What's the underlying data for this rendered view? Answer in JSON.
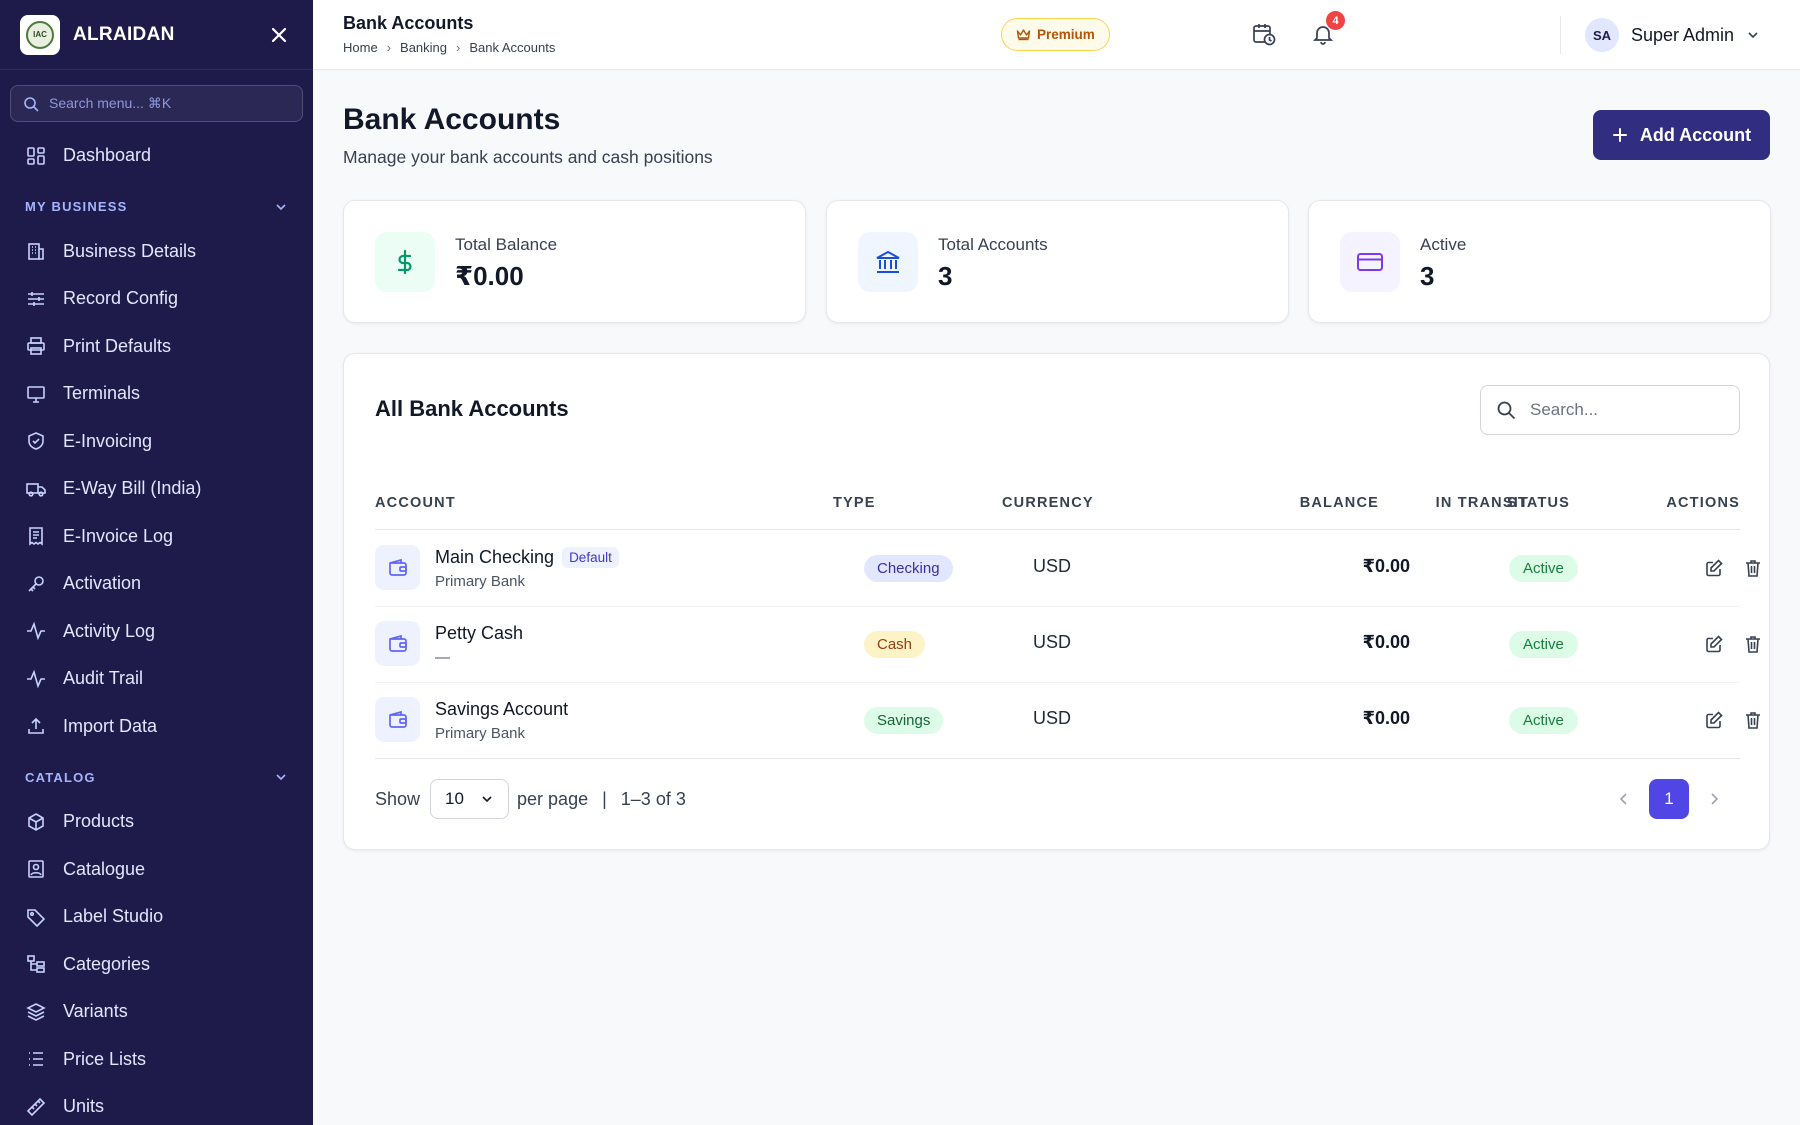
{
  "sidebar": {
    "brand": "ALRAIDAN",
    "logo_text": "IAC",
    "search_placeholder": "Search menu... ⌘K",
    "top_items": [
      {
        "label": "Dashboard",
        "icon": "dashboard-icon"
      }
    ],
    "sections": [
      {
        "title": "MY BUSINESS",
        "items": [
          {
            "label": "Business Details",
            "icon": "building-icon"
          },
          {
            "label": "Record Config",
            "icon": "sliders-icon"
          },
          {
            "label": "Print Defaults",
            "icon": "printer-icon"
          },
          {
            "label": "Terminals",
            "icon": "monitor-icon"
          },
          {
            "label": "E-Invoicing",
            "icon": "shield-icon"
          },
          {
            "label": "E-Way Bill (India)",
            "icon": "truck-icon"
          },
          {
            "label": "E-Invoice Log",
            "icon": "receipt-icon"
          },
          {
            "label": "Activation",
            "icon": "key-icon"
          },
          {
            "label": "Activity Log",
            "icon": "activity-icon"
          },
          {
            "label": "Audit Trail",
            "icon": "activity-icon"
          },
          {
            "label": "Import Data",
            "icon": "upload-icon"
          }
        ]
      },
      {
        "title": "CATALOG",
        "items": [
          {
            "label": "Products",
            "icon": "package-icon"
          },
          {
            "label": "Catalogue",
            "icon": "image-icon"
          },
          {
            "label": "Label Studio",
            "icon": "tag-icon"
          },
          {
            "label": "Categories",
            "icon": "tree-icon"
          },
          {
            "label": "Variants",
            "icon": "layers-icon"
          },
          {
            "label": "Price Lists",
            "icon": "list-icon"
          },
          {
            "label": "Units",
            "icon": "ruler-icon"
          }
        ]
      }
    ]
  },
  "header": {
    "title": "Bank Accounts",
    "breadcrumb": [
      "Home",
      "Banking",
      "Bank Accounts"
    ],
    "premium_label": "Premium",
    "notification_count": "4",
    "user_initials": "SA",
    "user_name": "Super Admin"
  },
  "page": {
    "title": "Bank Accounts",
    "subtitle": "Manage your bank accounts and cash positions",
    "add_button": "Add Account"
  },
  "stats": [
    {
      "label": "Total Balance",
      "value": "₹0.00",
      "icon": "dollar-icon",
      "bg": "#ecfdf5",
      "color": "#059669"
    },
    {
      "label": "Total Accounts",
      "value": "3",
      "icon": "bank-icon",
      "bg": "#eff6ff",
      "color": "#1d4ed8"
    },
    {
      "label": "Active",
      "value": "3",
      "icon": "credit-card-icon",
      "bg": "#f5f3ff",
      "color": "#7c3aed"
    }
  ],
  "table": {
    "title": "All Bank Accounts",
    "search_placeholder": "Search...",
    "columns": [
      "ACCOUNT",
      "TYPE",
      "CURRENCY",
      "BALANCE",
      "IN TRANSIT",
      "STATUS",
      "ACTIONS"
    ],
    "default_label": "Default",
    "rows": [
      {
        "name": "Main Checking",
        "sub": "Primary Bank",
        "is_default": true,
        "type": "Checking",
        "type_bg": "#e0e7ff",
        "type_color": "#3730a3",
        "currency": "USD",
        "balance": "₹0.00",
        "in_transit": "—",
        "status": "Active"
      },
      {
        "name": "Petty Cash",
        "sub": "—",
        "is_default": false,
        "type": "Cash",
        "type_bg": "#fef3c7",
        "type_color": "#92400e",
        "currency": "USD",
        "balance": "₹0.00",
        "in_transit": "—",
        "status": "Active"
      },
      {
        "name": "Savings Account",
        "sub": "Primary Bank",
        "is_default": false,
        "type": "Savings",
        "type_bg": "#dcfce7",
        "type_color": "#166534",
        "currency": "USD",
        "balance": "₹0.00",
        "in_transit": "—",
        "status": "Active"
      }
    ],
    "footer": {
      "show_label": "Show",
      "per_page_value": "10",
      "per_page_label": "per page",
      "divider": "|",
      "range": "1–3 of 3",
      "current_page": "1"
    }
  },
  "colors": {
    "sidebar_bg": "#1e1b4b",
    "accent": "#312e81",
    "page_active": "#4f46e5"
  }
}
